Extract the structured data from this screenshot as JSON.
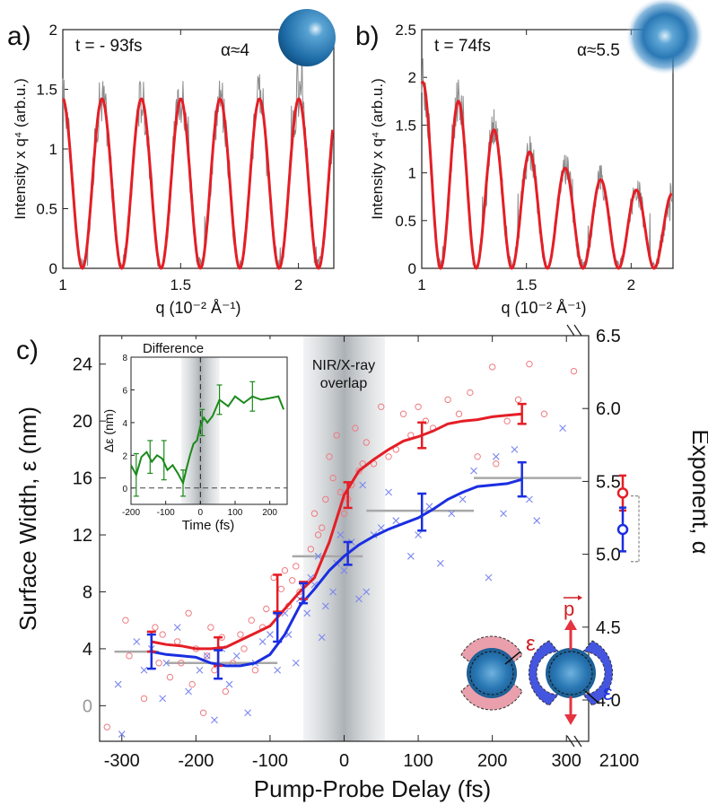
{
  "chart_data": [
    {
      "panel_label": "a)",
      "type": "line",
      "annotation_time": "t = - 93fs",
      "annotation_alpha": "α≈4",
      "xlabel": "q (10⁻² Å⁻¹)",
      "ylabel": "Intensity x q⁴ (arb.u.)",
      "xlim": [
        1.0,
        2.15
      ],
      "ylim": [
        0,
        2.0
      ],
      "xticks": [
        "1",
        "1.5",
        "2"
      ],
      "xtick_values": [
        1.0,
        1.5,
        2.0
      ],
      "yticks": [
        "0",
        "0.5",
        "1",
        "1.5",
        "2"
      ],
      "ytick_values": [
        0,
        0.5,
        1.0,
        1.5,
        2.0
      ],
      "fit": {
        "color": "#e41e26",
        "amplitude": [
          1.42,
          1.42,
          1.42,
          1.42,
          1.42,
          1.42,
          1.42,
          1.42
        ],
        "minima_q": [
          1.083,
          1.25,
          1.417,
          1.583,
          1.75,
          1.917,
          2.083
        ]
      },
      "sphere_style": "sharp"
    },
    {
      "panel_label": "b)",
      "type": "line",
      "annotation_time": "t = 74fs",
      "annotation_alpha": "α≈5.5",
      "xlabel": "q (10⁻² Å⁻¹)",
      "ylabel": "Intensity x q⁴ (arb.u.)",
      "xlim": [
        1.0,
        2.2
      ],
      "ylim": [
        0,
        2.5
      ],
      "xticks": [
        "1",
        "1.5",
        "2"
      ],
      "xtick_values": [
        1.0,
        1.5,
        2.0
      ],
      "yticks": [
        "0",
        "0.5",
        "1",
        "1.5",
        "2",
        "2.5"
      ],
      "ytick_values": [
        0,
        0.5,
        1.0,
        1.5,
        2.0,
        2.5
      ],
      "fit": {
        "color": "#e41e26",
        "amplitude": [
          1.95,
          1.75,
          1.45,
          1.22,
          1.05,
          0.93,
          0.82,
          0.78
        ],
        "minima_q": [
          1.09,
          1.26,
          1.43,
          1.6,
          1.77,
          1.94,
          2.11
        ]
      },
      "sphere_style": "blurred"
    },
    {
      "panel_label": "c)",
      "type": "line",
      "xlabel": "Pump-Probe Delay (fs)",
      "ylabel_left": "Surface Width,  ε (nm)",
      "ylabel_right": "Exponent,  α",
      "xlim": [
        -330,
        330
      ],
      "ylim_left": [
        -2.5,
        26
      ],
      "xticks": [
        "-300",
        "-200",
        "-100",
        "0",
        "100",
        "200",
        "300",
        "2100"
      ],
      "xtick_values": [
        -300,
        -200,
        -100,
        0,
        100,
        200,
        300,
        2100
      ],
      "yticks_left": [
        "0",
        "4",
        "8",
        "12",
        "16",
        "20",
        "24"
      ],
      "ytick_values_left": [
        0,
        4,
        8,
        12,
        16,
        20,
        24
      ],
      "yticks_right": [
        "4.0",
        "4.5",
        "5.0",
        "5.5",
        "6.0",
        "6.5"
      ],
      "ytick_values_right": [
        4.0,
        4.5,
        5.0,
        5.5,
        6.0,
        6.5
      ],
      "overlap_band": {
        "label_line1": "NIR/X-ray",
        "label_line2": "overlap",
        "x_range": [
          -55,
          55
        ]
      },
      "series": [
        {
          "color": "#e41e26",
          "x": [
            -260,
            -240,
            -220,
            -200,
            -180,
            -160,
            -140,
            -120,
            -100,
            -80,
            -60,
            -40,
            -20,
            0,
            20,
            40,
            60,
            80,
            100,
            120,
            140,
            160,
            180,
            200,
            220,
            240
          ],
          "values": [
            4.5,
            4.3,
            4.2,
            4.0,
            4.0,
            4.1,
            4.6,
            5.1,
            5.6,
            6.8,
            8.0,
            9.0,
            11.5,
            14.8,
            16.5,
            17.3,
            18.0,
            18.6,
            18.9,
            19.3,
            19.8,
            20.0,
            20.1,
            20.3,
            20.4,
            20.5
          ],
          "errorbars": [
            [
              -260,
              4.5,
              0.7
            ],
            [
              -170,
              3.8,
              1.0
            ],
            [
              -90,
              7.9,
              1.3
            ],
            [
              -55,
              8.1,
              0.6
            ],
            [
              5,
              14.8,
              0.9
            ],
            [
              105,
              19.0,
              0.9
            ],
            [
              240,
              20.5,
              0.7
            ]
          ]
        },
        {
          "color": "#1a2ee0",
          "x": [
            -260,
            -240,
            -220,
            -200,
            -180,
            -160,
            -140,
            -120,
            -100,
            -80,
            -60,
            -40,
            -20,
            0,
            20,
            40,
            60,
            80,
            100,
            120,
            140,
            160,
            180,
            200,
            220,
            240
          ],
          "values": [
            3.8,
            3.6,
            3.5,
            3.4,
            3.0,
            2.8,
            2.8,
            3.0,
            3.6,
            5.0,
            7.0,
            8.2,
            9.5,
            10.5,
            11.3,
            11.9,
            12.4,
            12.8,
            13.2,
            13.8,
            14.5,
            15.0,
            15.4,
            15.5,
            15.6,
            15.9
          ],
          "errorbars": [
            [
              -260,
              3.8,
              1.2
            ],
            [
              -170,
              2.9,
              1.0
            ],
            [
              -90,
              5.5,
              1.0
            ],
            [
              -55,
              7.9,
              0.7
            ],
            [
              5,
              10.7,
              0.8
            ],
            [
              105,
              13.6,
              1.3
            ],
            [
              240,
              15.9,
              1.2
            ]
          ]
        }
      ],
      "gray_segments": [
        {
          "x1": -310,
          "x2": -250,
          "y": 3.8
        },
        {
          "x1": -240,
          "x2": -90,
          "y": 3.0
        },
        {
          "x1": -70,
          "x2": 25,
          "y": 10.5
        },
        {
          "x1": 30,
          "x2": 175,
          "y": 13.7
        },
        {
          "x1": 175,
          "x2": 320,
          "y": 16.0
        }
      ],
      "right_points": [
        {
          "color": "#e41e26",
          "alpha": 5.42,
          "err": 0.12
        },
        {
          "color": "#1a2ee0",
          "alpha": 5.17,
          "err": 0.15
        }
      ],
      "scatter_red_circles": [
        [
          -320,
          -1.5
        ],
        [
          -295,
          6.0
        ],
        [
          -290,
          3.5
        ],
        [
          -270,
          0.5
        ],
        [
          -255,
          5.5
        ],
        [
          -250,
          3.0
        ],
        [
          -245,
          5.0
        ],
        [
          -235,
          2.0
        ],
        [
          -225,
          4.5
        ],
        [
          -220,
          3.0
        ],
        [
          -210,
          6.5
        ],
        [
          -205,
          1.5
        ],
        [
          -200,
          4.0
        ],
        [
          -190,
          -0.5
        ],
        [
          -185,
          3.5
        ],
        [
          -180,
          5.5
        ],
        [
          -175,
          2.5
        ],
        [
          -165,
          4.8
        ],
        [
          -160,
          1.0
        ],
        [
          -150,
          3.0
        ],
        [
          -140,
          5.0
        ],
        [
          -135,
          4.0
        ],
        [
          -125,
          6.0
        ],
        [
          -120,
          2.5
        ],
        [
          -110,
          5.5
        ],
        [
          -105,
          6.8
        ],
        [
          -95,
          9.0
        ],
        [
          -90,
          6.5
        ],
        [
          -85,
          8.2
        ],
        [
          -80,
          9.5
        ],
        [
          -75,
          7.0
        ],
        [
          -70,
          8.8
        ],
        [
          -65,
          9.8
        ],
        [
          -60,
          8.0
        ],
        [
          -55,
          8.5
        ],
        [
          -45,
          11.0
        ],
        [
          -40,
          13.5
        ],
        [
          -35,
          12.0
        ],
        [
          -30,
          12.5
        ],
        [
          -25,
          14.5
        ],
        [
          -20,
          17.5
        ],
        [
          -15,
          16.0
        ],
        [
          -10,
          19.0
        ],
        [
          -5,
          15.0
        ],
        [
          0,
          13.5
        ],
        [
          5,
          14.5
        ],
        [
          10,
          15.5
        ],
        [
          15,
          19.5
        ],
        [
          20,
          16.5
        ],
        [
          25,
          17.0
        ],
        [
          30,
          18.5
        ],
        [
          40,
          17.0
        ],
        [
          50,
          21.0
        ],
        [
          60,
          17.5
        ],
        [
          70,
          18.0
        ],
        [
          80,
          20.5
        ],
        [
          90,
          19.0
        ],
        [
          100,
          21.0
        ],
        [
          110,
          20.0
        ],
        [
          120,
          19.5
        ],
        [
          140,
          21.5
        ],
        [
          155,
          20.5
        ],
        [
          170,
          22.0
        ],
        [
          180,
          17.5
        ],
        [
          200,
          23.8
        ],
        [
          205,
          17.0
        ],
        [
          220,
          20.0
        ],
        [
          235,
          21.5
        ],
        [
          250,
          24.0
        ],
        [
          270,
          20.5
        ],
        [
          310,
          23.5
        ]
      ],
      "scatter_blue_crosses": [
        [
          -305,
          1.5
        ],
        [
          -300,
          -2.0
        ],
        [
          -280,
          4.5
        ],
        [
          -270,
          2.5
        ],
        [
          -260,
          4.0
        ],
        [
          -245,
          0.5
        ],
        [
          -240,
          3.0
        ],
        [
          -225,
          5.5
        ],
        [
          -210,
          1.0
        ],
        [
          -195,
          2.5
        ],
        [
          -185,
          3.5
        ],
        [
          -175,
          -1.0
        ],
        [
          -165,
          4.0
        ],
        [
          -155,
          1.5
        ],
        [
          -145,
          3.5
        ],
        [
          -130,
          -0.5
        ],
        [
          -120,
          3.0
        ],
        [
          -110,
          4.5
        ],
        [
          -100,
          5.0
        ],
        [
          -90,
          2.5
        ],
        [
          -80,
          6.5
        ],
        [
          -75,
          5.0
        ],
        [
          -65,
          3.0
        ],
        [
          -60,
          7.5
        ],
        [
          -50,
          6.5
        ],
        [
          -45,
          9.0
        ],
        [
          -40,
          8.5
        ],
        [
          -35,
          10.5
        ],
        [
          -30,
          4.8
        ],
        [
          -25,
          7.0
        ],
        [
          -15,
          8.0
        ],
        [
          -10,
          10.0
        ],
        [
          -5,
          12.0
        ],
        [
          0,
          9.5
        ],
        [
          10,
          11.5
        ],
        [
          20,
          7.5
        ],
        [
          25,
          15.5
        ],
        [
          30,
          8.0
        ],
        [
          40,
          12.0
        ],
        [
          50,
          12.5
        ],
        [
          60,
          15.0
        ],
        [
          70,
          13.0
        ],
        [
          90,
          10.5
        ],
        [
          100,
          12.0
        ],
        [
          115,
          14.0
        ],
        [
          130,
          10.0
        ],
        [
          145,
          13.5
        ],
        [
          160,
          14.5
        ],
        [
          175,
          16.5
        ],
        [
          195,
          9.0
        ],
        [
          205,
          17.5
        ],
        [
          215,
          13.5
        ],
        [
          230,
          18.0
        ],
        [
          250,
          14.5
        ],
        [
          260,
          13.0
        ],
        [
          295,
          19.5
        ]
      ]
    },
    {
      "panel_label": "",
      "type": "line",
      "title": "Difference",
      "xlabel": "Time (fs)",
      "ylabel": "Δε (nm)",
      "xlim": [
        -200,
        250
      ],
      "ylim": [
        -1,
        8
      ],
      "xticks": [
        "-200",
        "-100",
        "0",
        "100",
        "200"
      ],
      "xtick_values": [
        -200,
        -100,
        0,
        100,
        200
      ],
      "yticks": [
        "0",
        "2",
        "4",
        "6",
        "8"
      ],
      "ytick_values": [
        0,
        2,
        4,
        6,
        8
      ],
      "series": [
        {
          "color": "#1b8a1b",
          "x": [
            -200,
            -185,
            -170,
            -155,
            -140,
            -125,
            -110,
            -95,
            -80,
            -65,
            -50,
            -40,
            -30,
            -20,
            -10,
            0,
            10,
            20,
            35,
            55,
            80,
            100,
            125,
            150,
            175,
            200,
            225,
            240
          ],
          "values": [
            1.4,
            0.8,
            1.9,
            2.2,
            1.6,
            2.0,
            1.8,
            1.1,
            1.4,
            0.9,
            0.3,
            1.2,
            2.0,
            2.7,
            2.9,
            3.8,
            4.3,
            4.0,
            4.4,
            5.4,
            5.0,
            5.6,
            5.2,
            5.6,
            5.4,
            5.5,
            5.6,
            4.8
          ],
          "errorbars": [
            [
              -185,
              0.8,
              1.3
            ],
            [
              -145,
              1.9,
              1.0
            ],
            [
              -105,
              1.7,
              1.2
            ],
            [
              -50,
              0.3,
              0.8
            ],
            [
              5,
              4.0,
              0.8
            ],
            [
              55,
              5.4,
              0.9
            ],
            [
              150,
              5.6,
              0.9
            ]
          ]
        }
      ],
      "shaded_band": [
        -55,
        55
      ]
    }
  ],
  "sphere_labels": {
    "epsilon": "ε",
    "momentum": "p"
  }
}
